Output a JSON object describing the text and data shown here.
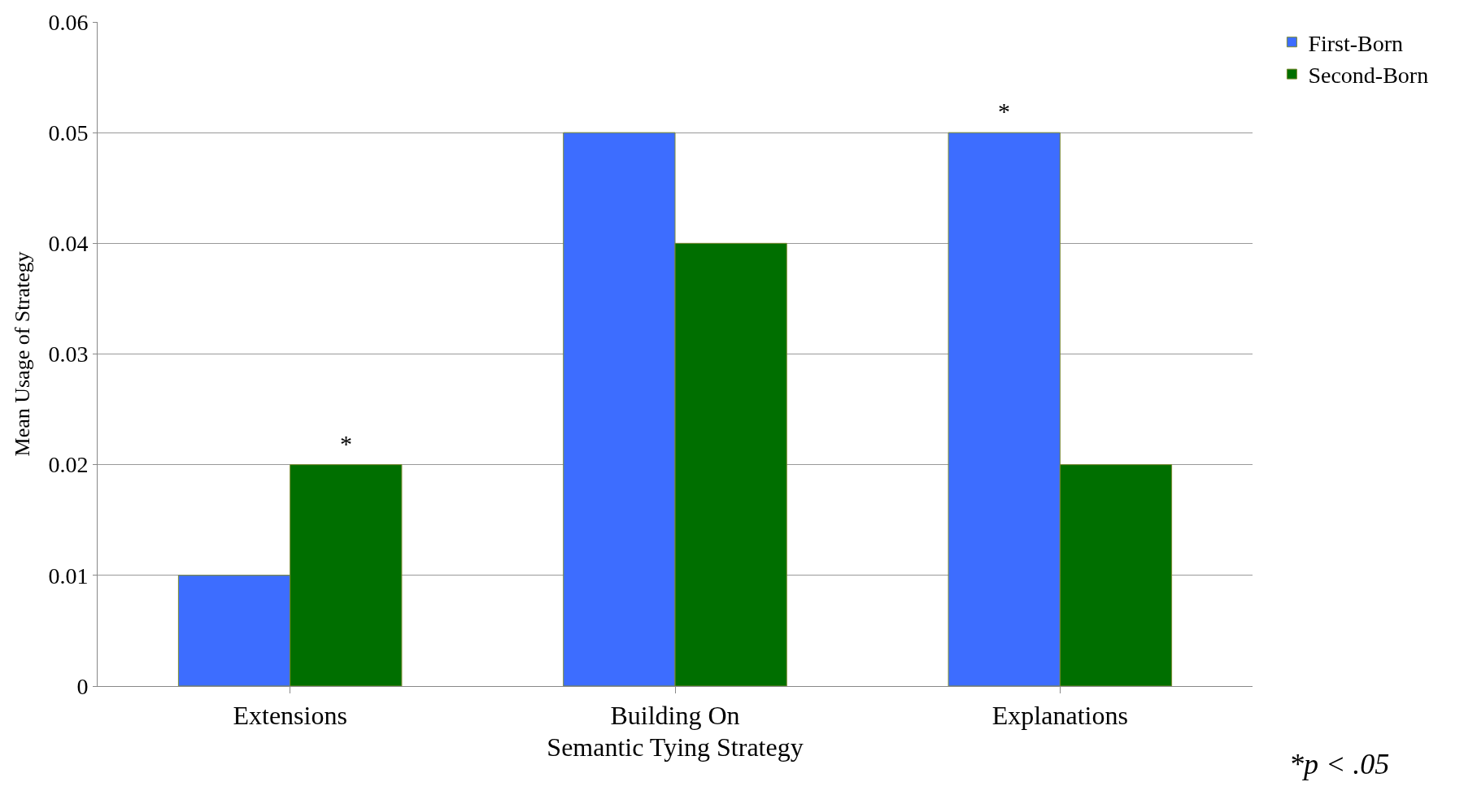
{
  "chart_data": {
    "type": "bar",
    "xlabel": "Semantic Tying Strategy",
    "ylabel": "Mean Usage of Strategy",
    "categories": [
      "Extensions",
      "Building On",
      "Explanations"
    ],
    "series": [
      {
        "name": "First-Born",
        "color": "#3d6dff",
        "values": [
          0.01,
          0.05,
          0.05
        ]
      },
      {
        "name": "Second-Born",
        "color": "#006f00",
        "values": [
          0.02,
          0.04,
          0.02
        ]
      }
    ],
    "ylim": [
      0,
      0.06
    ],
    "yticks": [
      0,
      0.01,
      0.02,
      0.03,
      0.04,
      0.05,
      0.06
    ],
    "grid": "y",
    "legend": "top right",
    "annotations": [
      {
        "text": "*",
        "x": "Extensions",
        "y": 0.02
      },
      {
        "text": "*",
        "x": "Explanations",
        "y": 0.05
      },
      "*p < .05"
    ]
  }
}
